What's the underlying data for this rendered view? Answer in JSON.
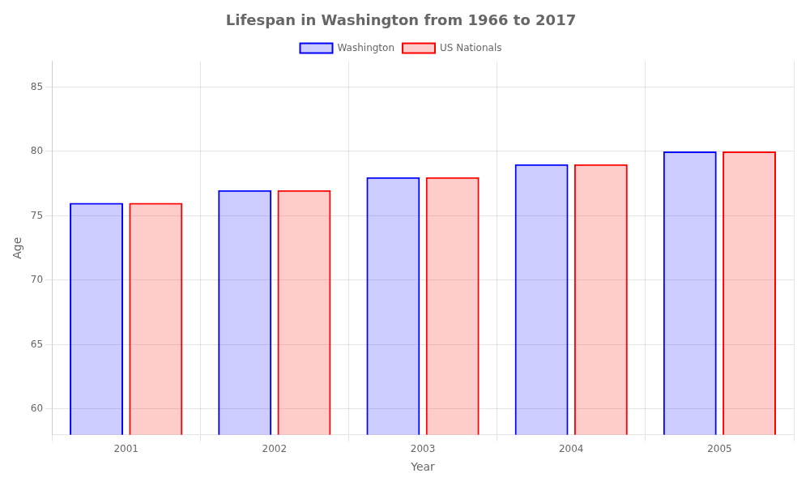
{
  "chart_data": {
    "type": "bar",
    "title": "Lifespan in Washington from 1966 to 2017",
    "x_label": "Year",
    "y_label": "Age",
    "categories": [
      "2001",
      "2002",
      "2003",
      "2004",
      "2005"
    ],
    "series": [
      {
        "name": "Washington",
        "color": "#0000ff",
        "values": [
          76,
          77,
          78,
          79,
          80
        ]
      },
      {
        "name": "US Nationals",
        "color": "#ff0000",
        "values": [
          76,
          77,
          78,
          79,
          80
        ]
      }
    ],
    "ylim": [
      58,
      87
    ],
    "yticks": [
      60,
      65,
      70,
      75,
      80,
      85
    ],
    "grid": true,
    "legend": "top"
  }
}
